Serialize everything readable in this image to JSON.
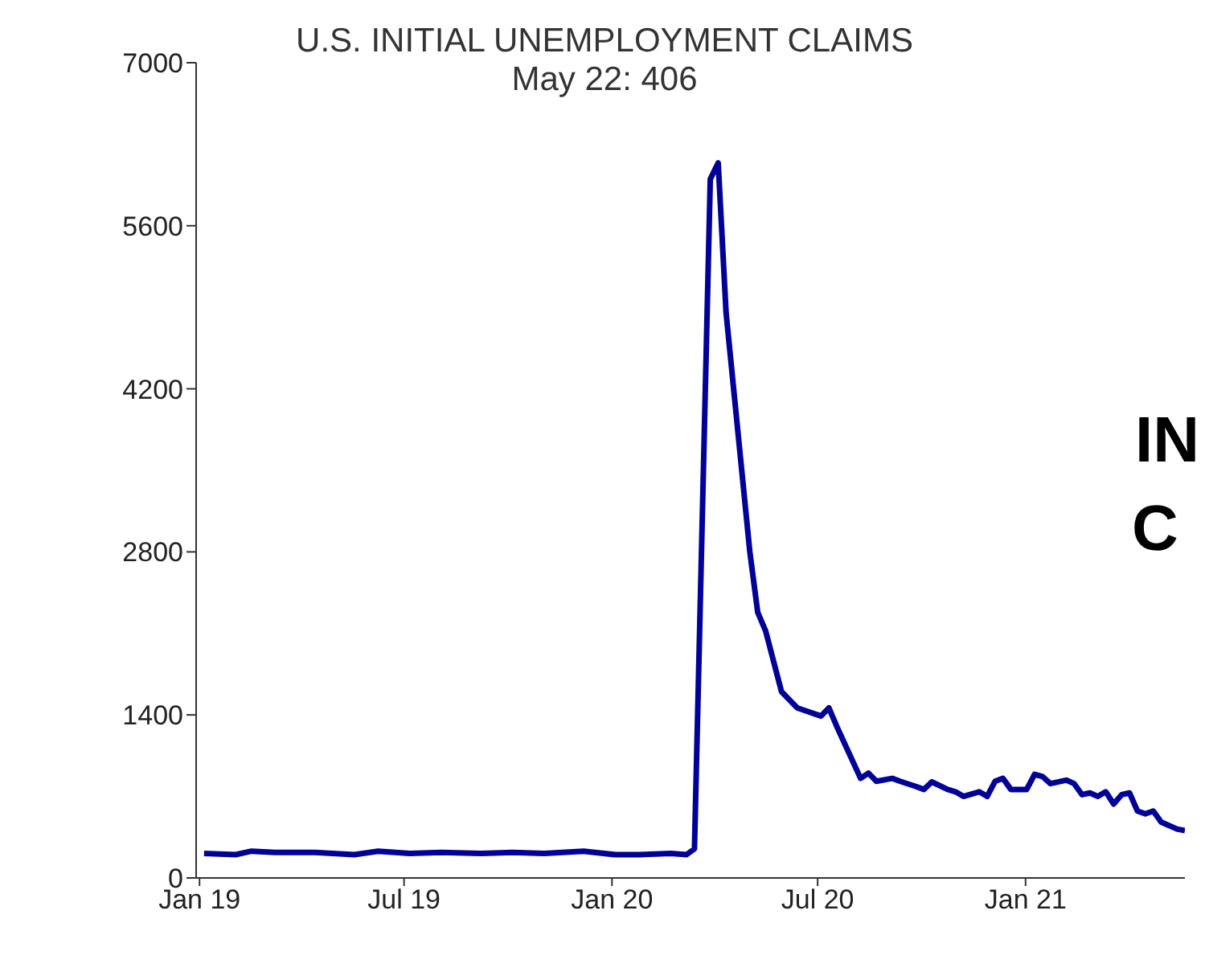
{
  "chart_data": {
    "type": "line",
    "title": "U.S. INITIAL UNEMPLOYMENT CLAIMS",
    "subtitle": "May 22: 406",
    "annotations": [
      "IN",
      "C"
    ],
    "x": [
      "2019-01-05",
      "2019-02-02",
      "2019-02-16",
      "2019-03-09",
      "2019-04-13",
      "2019-05-18",
      "2019-06-08",
      "2019-07-06",
      "2019-08-03",
      "2019-09-07",
      "2019-10-05",
      "2019-11-02",
      "2019-12-07",
      "2020-01-04",
      "2020-01-25",
      "2020-02-22",
      "2020-03-07",
      "2020-03-14",
      "2020-03-28",
      "2020-04-04",
      "2020-04-11",
      "2020-05-02",
      "2020-05-09",
      "2020-05-16",
      "2020-05-30",
      "2020-06-13",
      "2020-07-04",
      "2020-07-11",
      "2020-07-18",
      "2020-08-08",
      "2020-08-15",
      "2020-08-22",
      "2020-09-05",
      "2020-09-12",
      "2020-09-26",
      "2020-10-03",
      "2020-10-10",
      "2020-10-24",
      "2020-10-31",
      "2020-11-07",
      "2020-11-21",
      "2020-11-28",
      "2020-12-05",
      "2020-12-12",
      "2020-12-19",
      "2021-01-02",
      "2021-01-09",
      "2021-01-16",
      "2021-01-23",
      "2021-02-06",
      "2021-02-13",
      "2021-02-20",
      "2021-02-27",
      "2021-03-06",
      "2021-03-13",
      "2021-03-20",
      "2021-03-27",
      "2021-04-03",
      "2021-04-10",
      "2021-04-17",
      "2021-04-24",
      "2021-05-01",
      "2021-05-15",
      "2021-05-22"
    ],
    "series": [
      {
        "color": "#000099",
        "values": [
          210,
          200,
          230,
          220,
          220,
          200,
          230,
          210,
          220,
          210,
          220,
          210,
          230,
          200,
          200,
          210,
          200,
          250,
          6000,
          6140,
          4850,
          2800,
          2280,
          2120,
          1600,
          1460,
          1390,
          1460,
          1300,
          855,
          900,
          830,
          855,
          830,
          785,
          760,
          825,
          760,
          740,
          700,
          740,
          700,
          830,
          855,
          760,
          760,
          890,
          870,
          810,
          840,
          810,
          715,
          730,
          700,
          740,
          635,
          715,
          730,
          575,
          550,
          575,
          480,
          420,
          406
        ]
      }
    ],
    "xlim": [
      "2018-12-29",
      "2021-05-22"
    ],
    "xticks": [
      {
        "value": "2019-01-01",
        "label": "Jan 19"
      },
      {
        "value": "2019-07-01",
        "label": "Jul 19"
      },
      {
        "value": "2020-01-01",
        "label": "Jan 20"
      },
      {
        "value": "2020-07-01",
        "label": "Jul 20"
      },
      {
        "value": "2021-01-01",
        "label": "Jan 21"
      }
    ],
    "ylim": [
      0,
      7000
    ],
    "yticks": [
      0,
      1400,
      2800,
      4200,
      5600,
      7000
    ],
    "grid": false,
    "legend": false,
    "marker": "none",
    "line_style": "solid"
  }
}
